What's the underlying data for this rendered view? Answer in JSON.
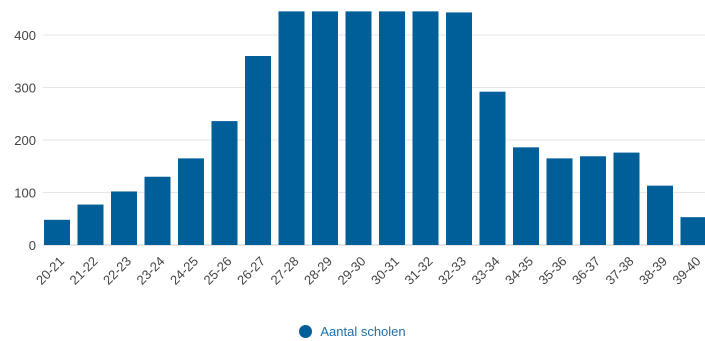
{
  "chart_data": {
    "type": "bar",
    "categories": [
      "20-21",
      "21-22",
      "22-23",
      "23-24",
      "24-25",
      "25-26",
      "26-27",
      "27-28",
      "28-29",
      "29-30",
      "30-31",
      "31-32",
      "32-33",
      "33-34",
      "34-35",
      "35-36",
      "36-37",
      "37-38",
      "38-39",
      "39-40"
    ],
    "series": [
      {
        "name": "Aantal scholen",
        "values": [
          48,
          77,
          102,
          130,
          165,
          236,
          360,
          445,
          445,
          445,
          445,
          445,
          443,
          292,
          186,
          165,
          169,
          176,
          113,
          53
        ]
      }
    ],
    "y_ticks": [
      "0",
      "100",
      "200",
      "300",
      "400"
    ],
    "ylim": [
      0,
      445
    ],
    "grid": true,
    "legend": "bottom-center",
    "colors": {
      "bar": "#005f99",
      "grid": "#e6e6e6",
      "legend_text": "#1f6fa8"
    }
  }
}
